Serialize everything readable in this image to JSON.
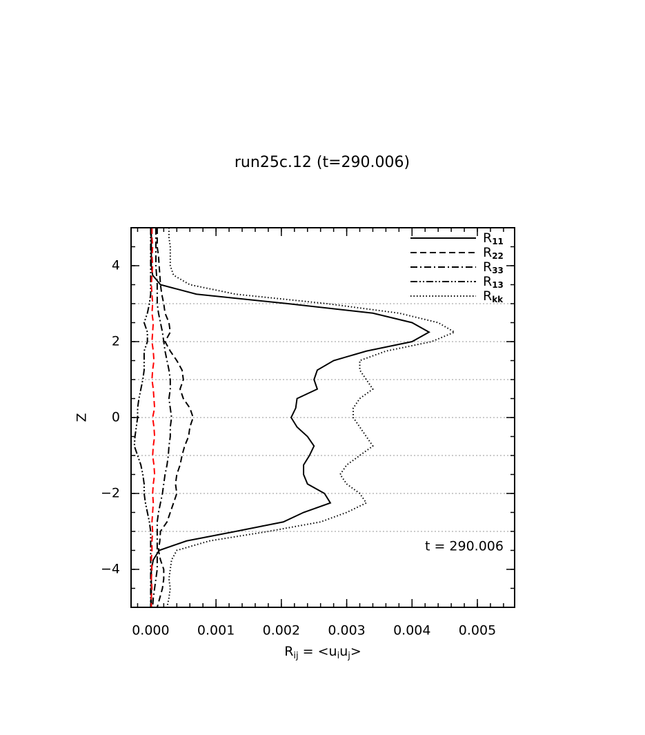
{
  "chart_data": {
    "type": "line",
    "title": "run25c.12 (t=290.006)",
    "xlabel": [
      {
        "text": "R"
      },
      {
        "text": "ij",
        "sub": true
      },
      {
        "text": "  =  <u"
      },
      {
        "text": "i",
        "sub": true
      },
      {
        "text": "u"
      },
      {
        "text": "j",
        "sub": true
      },
      {
        "text": ">"
      }
    ],
    "ylabel": "Z",
    "annotation": "t  =  290.006",
    "xlim": [
      -0.0003,
      0.00557
    ],
    "ylim": [
      -5,
      5
    ],
    "xticks": [
      {
        "value": 0,
        "label": "0.000"
      },
      {
        "value": 0.001,
        "label": "0.001"
      },
      {
        "value": 0.002,
        "label": "0.002"
      },
      {
        "value": 0.003,
        "label": "0.003"
      },
      {
        "value": 0.004,
        "label": "0.004"
      },
      {
        "value": 0.005,
        "label": "0.005"
      }
    ],
    "yticks": [
      {
        "value": -4,
        "label": "−4"
      },
      {
        "value": -2,
        "label": "−2"
      },
      0,
      2,
      4
    ],
    "grid_lines": [
      -3,
      -2,
      -1,
      0,
      1,
      2,
      3
    ],
    "legend": "upper right",
    "z": [
      5,
      4.75,
      4.5,
      4.25,
      4,
      3.75,
      3.5,
      3.25,
      3,
      2.75,
      2.5,
      2.25,
      2,
      1.75,
      1.5,
      1.25,
      1,
      0.75,
      0.5,
      0.25,
      0,
      -0.25,
      -0.5,
      -0.75,
      -1,
      -1.25,
      -1.5,
      -1.75,
      -2,
      -2.25,
      -2.5,
      -2.75,
      -3,
      -3.25,
      -3.5,
      -3.75,
      -4,
      -4.25,
      -4.5,
      -4.75,
      -5
    ],
    "series": [
      {
        "name": "R11",
        "color": "#000000",
        "dash": "solid",
        "values": [
          1e-05,
          1e-05,
          1e-05,
          1e-05,
          1e-05,
          3e-05,
          0.00015,
          0.0007,
          0.0021,
          0.0034,
          0.004,
          0.00426,
          0.004,
          0.0033,
          0.0028,
          0.00255,
          0.0025,
          0.00255,
          0.00224,
          0.00222,
          0.00215,
          0.00224,
          0.0024,
          0.0025,
          0.00243,
          0.00234,
          0.00234,
          0.0024,
          0.00266,
          0.00275,
          0.00234,
          0.00203,
          0.0013,
          0.00055,
          0.00013,
          4e-05,
          1e-05,
          1e-05,
          1e-05,
          1e-05,
          1e-05
        ]
      },
      {
        "name": "R22",
        "color": "#000000",
        "dash": "dashed",
        "values": [
          0.0001,
          0.0001,
          0.0001,
          0.00012,
          0.00013,
          0.00014,
          0.00015,
          0.00017,
          0.0002,
          0.00022,
          0.00028,
          0.0003,
          0.00022,
          0.0003,
          0.0004,
          0.00048,
          0.0005,
          0.00045,
          0.0005,
          0.0006,
          0.00065,
          0.0006,
          0.00058,
          0.00052,
          0.00048,
          0.00045,
          0.0004,
          0.00038,
          0.0004,
          0.00035,
          0.0003,
          0.00025,
          0.00015,
          0.00014,
          0.00012,
          0.00015,
          0.0002,
          0.0002,
          0.00018,
          0.00014,
          0.0001
        ]
      },
      {
        "name": "R33",
        "color": "#000000",
        "dash": "dashdot",
        "values": [
          8e-05,
          8e-05,
          8e-05,
          8e-05,
          8e-05,
          9e-05,
          0.0001,
          0.0001,
          0.0001,
          0.00012,
          0.00015,
          0.00018,
          0.0002,
          0.00022,
          0.00025,
          0.00028,
          0.0003,
          0.0003,
          0.00028,
          0.0003,
          0.00032,
          0.0003,
          0.0003,
          0.00028,
          0.00027,
          0.00025,
          0.00022,
          0.0002,
          0.00018,
          0.00015,
          0.00012,
          0.0001,
          0.0001,
          0.0001,
          0.0001,
          0.0001,
          0.0001,
          8e-05,
          6e-05,
          4e-05,
          3e-05
        ]
      },
      {
        "name": "R13",
        "color": "#000000",
        "dash": "dashdotdot",
        "values": [
          0,
          0,
          0,
          0,
          0,
          0,
          0,
          0,
          -2e-05,
          -5e-05,
          -0.0001,
          -5e-05,
          -5e-05,
          -0.0001,
          -0.0001,
          -0.0001,
          -0.00012,
          -0.00015,
          -0.00018,
          -0.0002,
          -0.0002,
          -0.00022,
          -0.00024,
          -0.00025,
          -0.0002,
          -0.00015,
          -0.00012,
          -0.0001,
          -0.0001,
          -8e-05,
          -5e-05,
          -2e-05,
          0,
          0,
          0,
          0,
          0,
          0,
          0,
          0,
          0
        ]
      },
      {
        "name": "Rkk",
        "color": "#000000",
        "dash": "dotted",
        "values": [
          0.00028,
          0.00028,
          0.0003,
          0.0003,
          0.0003,
          0.00035,
          0.0006,
          0.0013,
          0.0027,
          0.0038,
          0.0044,
          0.00465,
          0.0043,
          0.0036,
          0.0032,
          0.0032,
          0.0033,
          0.0034,
          0.0032,
          0.0031,
          0.0031,
          0.0032,
          0.0033,
          0.0034,
          0.0032,
          0.003,
          0.0029,
          0.003,
          0.0032,
          0.0033,
          0.003,
          0.0026,
          0.0018,
          0.0009,
          0.0004,
          0.00032,
          0.0003,
          0.00028,
          0.0003,
          0.00028,
          0.00025
        ]
      },
      {
        "color": "#ff0000",
        "dash": "dashed",
        "values": [
          2e-05,
          2e-05,
          3e-05,
          2e-05,
          3e-05,
          2e-05,
          1e-05,
          2e-05,
          3e-05,
          2e-05,
          4e-05,
          3e-05,
          2e-05,
          4e-05,
          5e-05,
          3e-05,
          2e-05,
          4e-05,
          5e-05,
          6e-05,
          3e-05,
          5e-05,
          6e-05,
          4e-05,
          3e-05,
          5e-05,
          6e-05,
          4e-05,
          3e-05,
          4e-05,
          3e-05,
          2e-05,
          3e-05,
          2e-05,
          2e-05,
          1e-05,
          2e-05,
          1e-05,
          2e-05,
          1e-05,
          1e-05
        ]
      }
    ]
  }
}
